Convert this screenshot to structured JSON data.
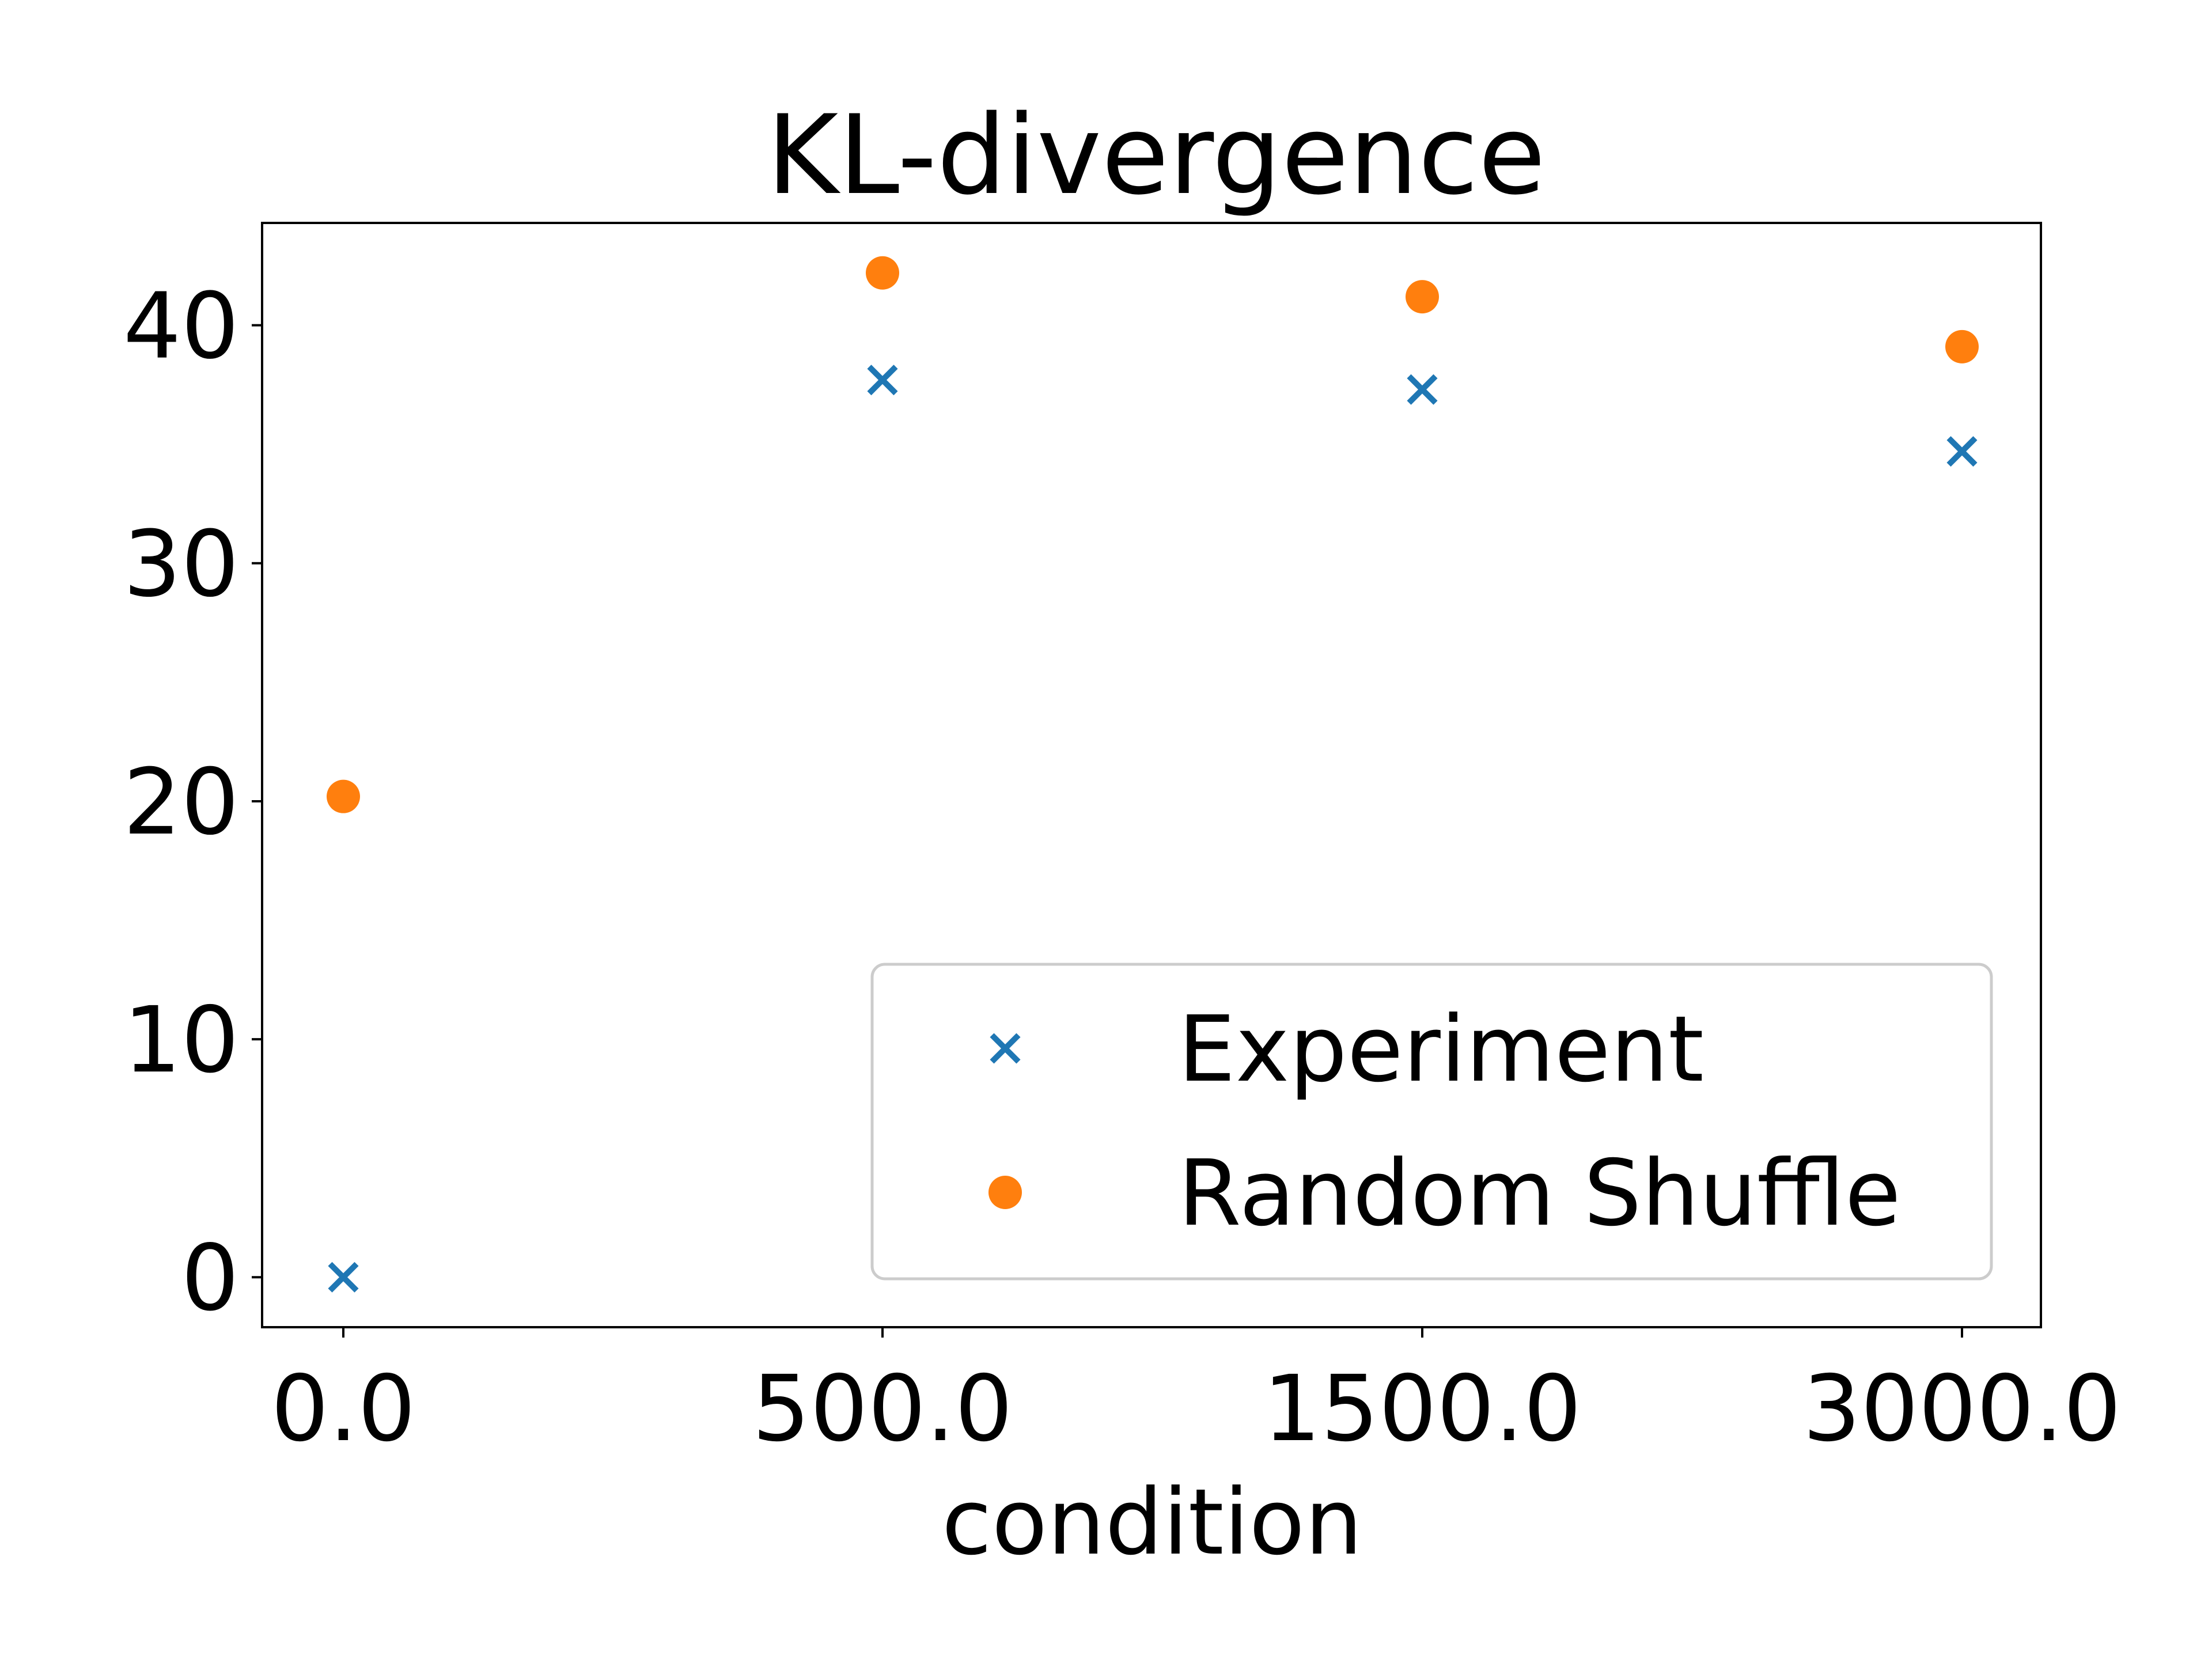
{
  "chart_data": {
    "type": "scatter",
    "title": "KL-divergence",
    "xlabel": "condition",
    "ylabel": "",
    "categories": [
      "0.0",
      "500.0",
      "1500.0",
      "3000.0"
    ],
    "series": [
      {
        "name": "Experiment",
        "marker": "x",
        "color": "#1f77b4",
        "values": [
          0.0,
          37.7,
          37.3,
          34.7
        ]
      },
      {
        "name": "Random Shuffle",
        "marker": "o",
        "color": "#ff7f0e",
        "values": [
          20.2,
          42.2,
          41.2,
          39.1
        ]
      }
    ],
    "ylim": [
      -2.1,
      44.3
    ],
    "yticks": [
      "0",
      "10",
      "20",
      "30",
      "40"
    ],
    "legend": {
      "placement": "lower-right",
      "entries": [
        "Experiment",
        "Random Shuffle"
      ]
    },
    "grid": false
  }
}
